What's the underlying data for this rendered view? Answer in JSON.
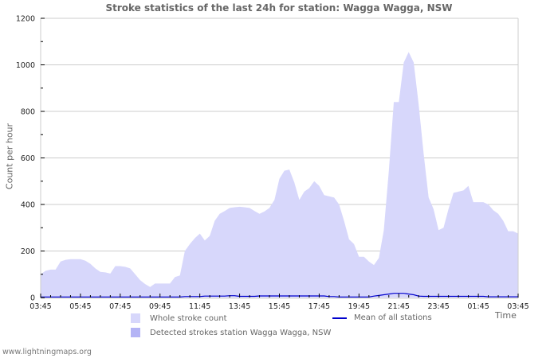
{
  "title": "Stroke statistics of the last 24h for station: Wagga Wagga, NSW",
  "ylabel": "Count per hour",
  "xlabel": "Time",
  "footer": "www.lightningmaps.org",
  "colors": {
    "whole_stroke_fill": "#d7d7fb",
    "detected_fill": "#b4b4f5",
    "mean_line": "#0000cc",
    "grid": "#cccccc",
    "text": "#666666"
  },
  "legend": {
    "whole": "Whole stroke count",
    "detected": "Detected strokes station Wagga Wagga, NSW",
    "mean": "Mean of all stations"
  },
  "y_ticks": [
    "0",
    "200",
    "400",
    "600",
    "800",
    "1000",
    "1200"
  ],
  "x_ticks": [
    "03:45",
    "05:45",
    "07:45",
    "09:45",
    "11:45",
    "13:45",
    "15:45",
    "17:45",
    "19:45",
    "21:45",
    "23:45",
    "01:45",
    "03:45"
  ],
  "chart_data": {
    "type": "area",
    "title": "Stroke statistics of the last 24h for station: Wagga Wagga, NSW",
    "xlabel": "Time",
    "ylabel": "Count per hour",
    "ylim": [
      0,
      1200
    ],
    "grid": true,
    "legend_position": "bottom",
    "x": [
      "03:45",
      "04:00",
      "04:15",
      "04:30",
      "04:45",
      "05:00",
      "05:15",
      "05:30",
      "05:45",
      "06:00",
      "06:15",
      "06:30",
      "06:45",
      "07:00",
      "07:15",
      "07:30",
      "07:45",
      "08:00",
      "08:15",
      "08:30",
      "08:45",
      "09:00",
      "09:15",
      "09:30",
      "09:45",
      "10:00",
      "10:15",
      "10:30",
      "10:45",
      "11:00",
      "11:15",
      "11:30",
      "11:45",
      "12:00",
      "12:15",
      "12:30",
      "12:45",
      "13:00",
      "13:15",
      "13:30",
      "13:45",
      "14:00",
      "14:15",
      "14:30",
      "14:45",
      "15:00",
      "15:15",
      "15:30",
      "15:45",
      "16:00",
      "16:15",
      "16:30",
      "16:45",
      "17:00",
      "17:15",
      "17:30",
      "17:45",
      "18:00",
      "18:15",
      "18:30",
      "18:45",
      "19:00",
      "19:15",
      "19:30",
      "19:45",
      "20:00",
      "20:15",
      "20:30",
      "20:45",
      "21:00",
      "21:15",
      "21:30",
      "21:45",
      "22:00",
      "22:15",
      "22:30",
      "22:45",
      "23:00",
      "23:15",
      "23:30",
      "23:45",
      "00:00",
      "00:15",
      "00:30",
      "00:45",
      "01:00",
      "01:15",
      "01:30",
      "01:45",
      "02:00",
      "02:15",
      "02:30",
      "02:45",
      "03:00",
      "03:15",
      "03:30",
      "03:45"
    ],
    "series": [
      {
        "name": "Whole stroke count",
        "values": [
          100,
          115,
          120,
          120,
          155,
          162,
          165,
          165,
          165,
          158,
          145,
          125,
          110,
          108,
          103,
          135,
          135,
          132,
          125,
          100,
          75,
          58,
          45,
          60,
          60,
          60,
          60,
          88,
          95,
          200,
          230,
          255,
          275,
          245,
          265,
          330,
          360,
          372,
          385,
          388,
          390,
          388,
          385,
          372,
          360,
          370,
          385,
          420,
          510,
          545,
          550,
          495,
          420,
          455,
          470,
          500,
          480,
          440,
          435,
          430,
          400,
          330,
          250,
          230,
          175,
          175,
          155,
          140,
          170,
          290,
          545,
          840,
          840,
          1010,
          1055,
          1010,
          830,
          620,
          430,
          380,
          290,
          300,
          380,
          450,
          455,
          460,
          480,
          410,
          410,
          410,
          400,
          375,
          360,
          330,
          285,
          285,
          275
        ]
      },
      {
        "name": "Detected strokes station Wagga Wagga, NSW",
        "values": [
          0,
          0,
          0,
          0,
          0,
          0,
          0,
          0,
          0,
          0,
          0,
          0,
          0,
          0,
          0,
          0,
          0,
          0,
          0,
          0,
          0,
          0,
          0,
          0,
          0,
          0,
          0,
          0,
          0,
          0,
          0,
          0,
          0,
          0,
          0,
          0,
          0,
          0,
          0,
          0,
          0,
          0,
          0,
          0,
          0,
          0,
          0,
          0,
          0,
          0,
          0,
          0,
          0,
          0,
          0,
          0,
          0,
          0,
          0,
          0,
          0,
          0,
          0,
          0,
          0,
          0,
          0,
          0,
          0,
          0,
          0,
          0,
          0,
          0,
          0,
          0,
          0,
          0,
          0,
          0,
          0,
          0,
          0,
          0,
          0,
          0,
          0,
          0,
          0,
          0,
          0,
          0,
          0,
          0,
          0,
          0,
          0
        ]
      },
      {
        "name": "Mean of all stations",
        "values": [
          2,
          2,
          2,
          2,
          2,
          2,
          2,
          2,
          2,
          2,
          2,
          2,
          2,
          2,
          2,
          2,
          2,
          2,
          2,
          2,
          2,
          2,
          2,
          2,
          2,
          2,
          2,
          2,
          2,
          4,
          4,
          4,
          4,
          6,
          6,
          6,
          6,
          6,
          8,
          8,
          5,
          5,
          5,
          5,
          7,
          7,
          7,
          7,
          7,
          7,
          7,
          7,
          7,
          7,
          7,
          7,
          7,
          7,
          4,
          4,
          2,
          2,
          2,
          2,
          2,
          2,
          2,
          6,
          9,
          12,
          15,
          18,
          18,
          18,
          15,
          12,
          6,
          5,
          5,
          5,
          5,
          5,
          5,
          5,
          5,
          5,
          5,
          5,
          5,
          5,
          3,
          3,
          3,
          3,
          3,
          3,
          3
        ]
      }
    ]
  }
}
